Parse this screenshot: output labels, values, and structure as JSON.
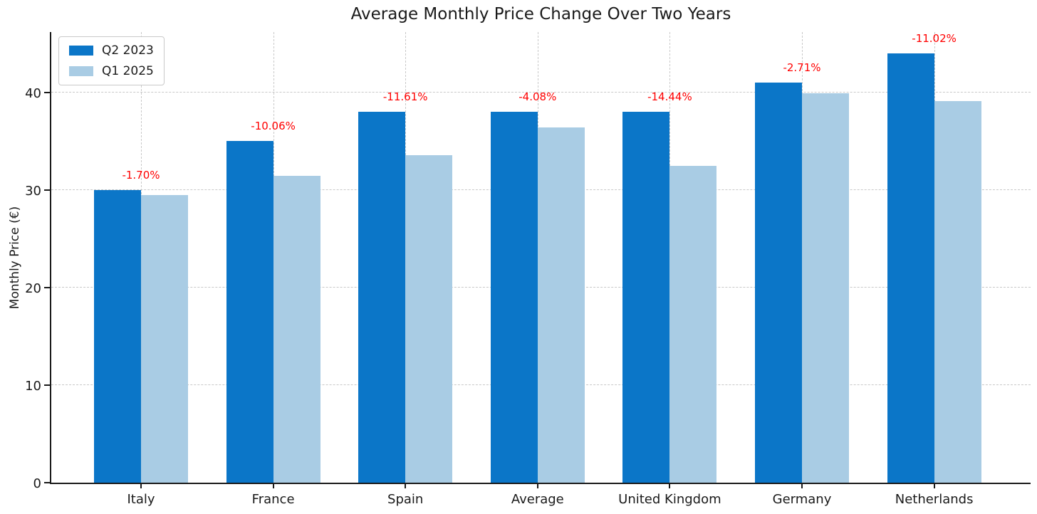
{
  "chart_data": {
    "type": "bar",
    "title": "Average Monthly Price Change Over Two Years",
    "xlabel": "",
    "ylabel": "Monthly Price (€)",
    "categories": [
      "Italy",
      "France",
      "Spain",
      "Average",
      "United Kingdom",
      "Germany",
      "Netherlands"
    ],
    "series": [
      {
        "name": "Q2 2023",
        "color": "#0b76c8",
        "values": [
          30,
          35,
          38,
          38,
          38,
          41,
          44
        ]
      },
      {
        "name": "Q1 2025",
        "color": "#a9cce4",
        "values": [
          29.49,
          31.48,
          33.59,
          36.45,
          32.51,
          39.89,
          39.15
        ]
      }
    ],
    "annotations": {
      "color": "#ff0000",
      "labels": [
        "-1.70%",
        "-10.06%",
        "-11.61%",
        "-4.08%",
        "-14.44%",
        "-2.71%",
        "-11.02%"
      ]
    },
    "yticks": [
      0,
      10,
      20,
      30,
      40
    ],
    "ylim": [
      0,
      46.2
    ],
    "grid": "dashed-horizontal-and-vertical",
    "grid_color": "#c9c9c9",
    "legend_position": "upper-left"
  }
}
